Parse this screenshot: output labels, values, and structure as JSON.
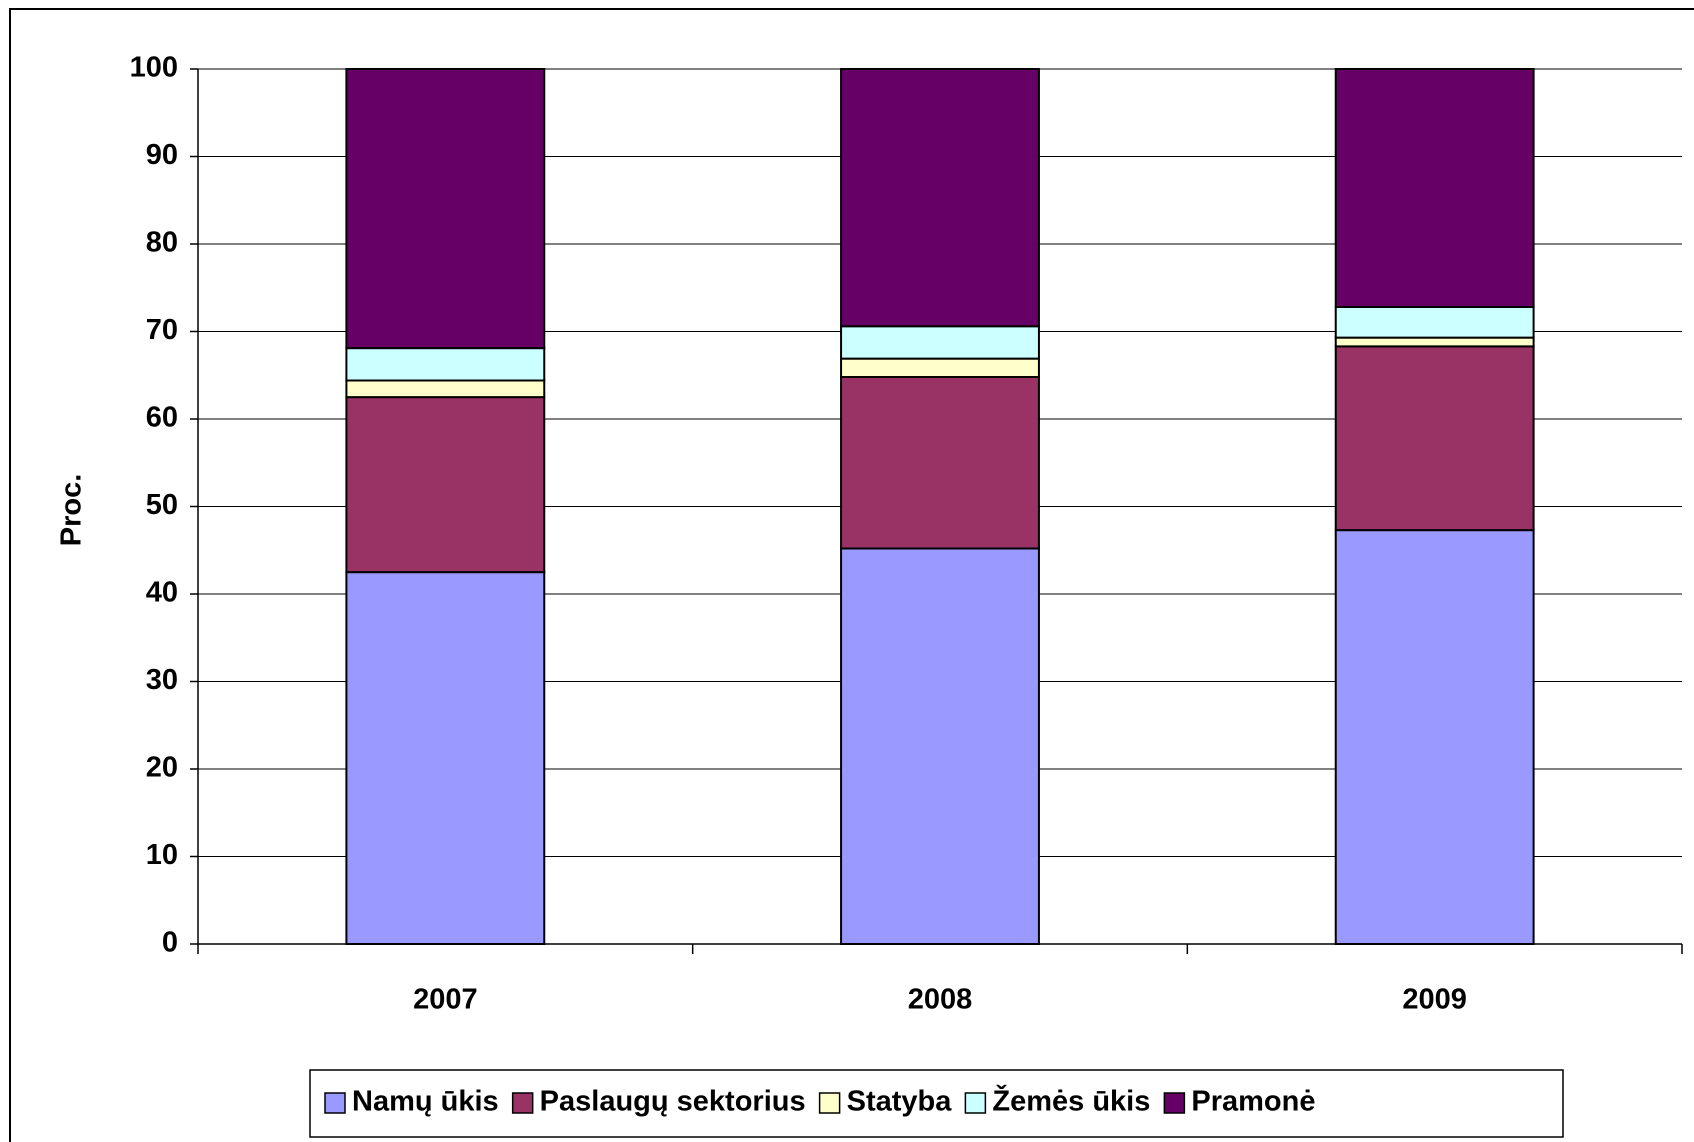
{
  "chart_data": {
    "type": "stacked_bar",
    "categories": [
      "2007",
      "2008",
      "2009"
    ],
    "y_label": "Proc.",
    "series": [
      {
        "name": "Namų ūkis",
        "color": "#9999ff",
        "values": [
          42.5,
          45.2,
          47.3
        ]
      },
      {
        "name": "Paslaugų sektorius",
        "color": "#993366",
        "values": [
          20.0,
          19.6,
          21.0
        ]
      },
      {
        "name": "Statyba",
        "color": "#ffffcc",
        "values": [
          1.9,
          2.1,
          1.0
        ]
      },
      {
        "name": "Žemės ūkis",
        "color": "#ccffff",
        "values": [
          3.7,
          3.7,
          3.5
        ]
      },
      {
        "name": "Pramonė",
        "color": "#660066",
        "values": [
          31.9,
          29.4,
          27.2
        ]
      }
    ],
    "ylim": [
      0,
      100
    ],
    "yticks": [
      0,
      10,
      20,
      30,
      40,
      50,
      60,
      70,
      80,
      90,
      100
    ],
    "grid": true,
    "legend": "bottom"
  }
}
